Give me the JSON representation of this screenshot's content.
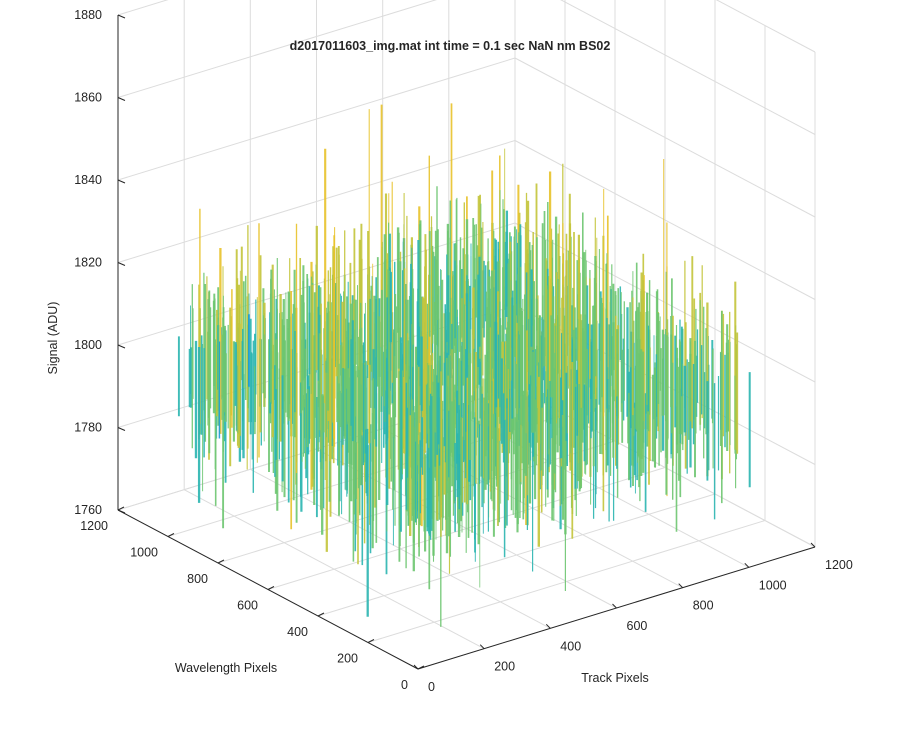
{
  "chart_data": {
    "type": "surface",
    "title": "d2017011603_img.mat int time = 0.1 sec  NaN nm BS02",
    "xlabel": "Track Pixels",
    "ylabel": "Wavelength Pixels",
    "zlabel": "Signal (ADU)",
    "xlim": [
      0,
      1200
    ],
    "ylim": [
      0,
      1200
    ],
    "zlim": [
      1760,
      1880
    ],
    "x_ticks": [
      0,
      200,
      400,
      600,
      800,
      1000,
      1200
    ],
    "y_ticks": [
      0,
      200,
      400,
      600,
      800,
      1000,
      1200
    ],
    "z_ticks": [
      1760,
      1780,
      1800,
      1820,
      1840,
      1860,
      1880
    ],
    "x_tick_labels": [
      "0",
      "200",
      "400",
      "600",
      "800",
      "1000",
      "1200"
    ],
    "y_tick_labels": [
      "0",
      "200",
      "400",
      "600",
      "800",
      "1000",
      "1200"
    ],
    "z_tick_labels": [
      "1760",
      "1780",
      "1800",
      "1820",
      "1840",
      "1860",
      "1880"
    ],
    "data_extent": {
      "x": [
        1,
        1024
      ],
      "y": [
        1,
        1024
      ]
    },
    "signal_typical_range": [
      1775,
      1825
    ],
    "signal_mean": 1800,
    "grid": true,
    "colormap": "parula",
    "colors": [
      "#0072bd",
      "#1a9bd6",
      "#2ab5b0",
      "#6dc570",
      "#c3c43a",
      "#e8c22a"
    ]
  }
}
